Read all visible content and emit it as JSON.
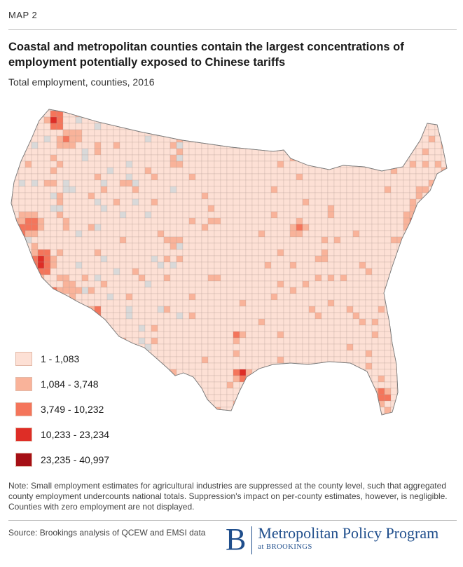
{
  "header": {
    "map_label": "MAP 2",
    "title": "Coastal and metropolitan counties contain the largest concentrations of employment potentially exposed to Chinese tariffs",
    "subtitle": "Total employment, counties, 2016"
  },
  "legend": {
    "items": [
      {
        "label": "1 - 1,083",
        "color": "#fde0d5"
      },
      {
        "label": "1,084 - 3,748",
        "color": "#f9b39a"
      },
      {
        "label": "3,749 - 10,232",
        "color": "#f4755b"
      },
      {
        "label": "10,233 - 23,234",
        "color": "#de2d26"
      },
      {
        "label": "23,235 - 40,997",
        "color": "#a50f15"
      }
    ],
    "no_data_color": "#d9d9d9"
  },
  "footer": {
    "note": "Note: Small employment estimates for agricultural industries are suppressed at the county level, such that aggregated county employment undercounts national totals. Suppression's impact on per-county estimates, however, is negligible. Counties with zero employment are not displayed.",
    "source": "Source: Brookings analysis of QCEW and EMSI data",
    "logo_letter": "B",
    "logo_program": "Metropolitan Policy Program",
    "logo_org": "at BROOKINGS"
  }
}
